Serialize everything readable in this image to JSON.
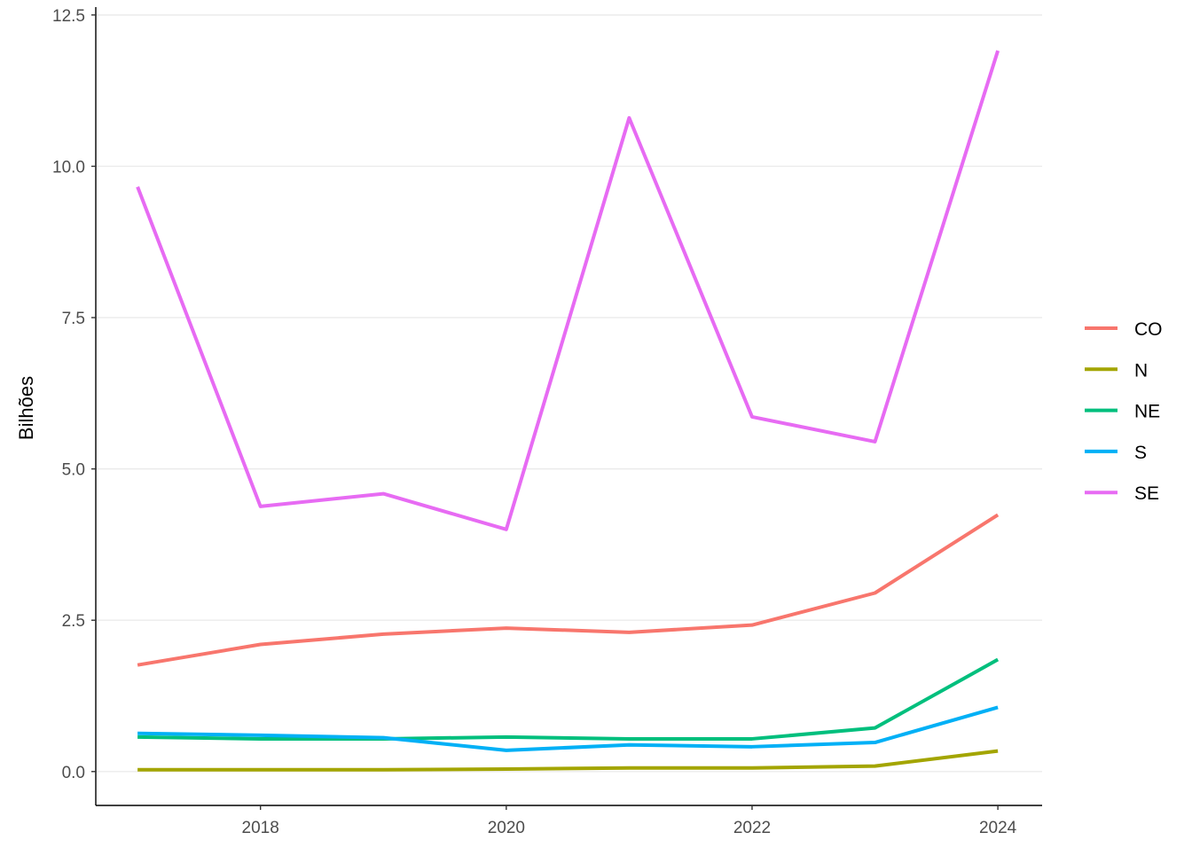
{
  "chart_data": {
    "type": "line",
    "title": "",
    "xlabel": "",
    "ylabel": "Bilhões",
    "x": [
      2017,
      2018,
      2019,
      2020,
      2021,
      2022,
      2023,
      2024
    ],
    "xticks": [
      "2018",
      "2020",
      "2022",
      "2024"
    ],
    "yticks": [
      "0.0",
      "2.5",
      "5.0",
      "7.5",
      "10.0",
      "12.5"
    ],
    "xlim": [
      2016.66,
      2024.36
    ],
    "ylim": [
      -0.56,
      12.63
    ],
    "grid": "horizontal major",
    "legend_position": "right",
    "series": [
      {
        "name": "CO",
        "color": "#F8766D",
        "values": [
          1.76,
          2.1,
          2.27,
          2.37,
          2.3,
          2.42,
          2.95,
          4.24
        ]
      },
      {
        "name": "N",
        "color": "#A3A500",
        "values": [
          0.03,
          0.03,
          0.03,
          0.04,
          0.06,
          0.06,
          0.09,
          0.34
        ]
      },
      {
        "name": "NE",
        "color": "#00BF7D",
        "values": [
          0.57,
          0.54,
          0.54,
          0.57,
          0.54,
          0.54,
          0.72,
          1.85
        ]
      },
      {
        "name": "S",
        "color": "#00B0F6",
        "values": [
          0.63,
          0.6,
          0.56,
          0.35,
          0.44,
          0.41,
          0.48,
          1.06
        ]
      },
      {
        "name": "SE",
        "color": "#E76BF3",
        "values": [
          9.66,
          4.38,
          4.59,
          4.0,
          10.8,
          5.86,
          5.45,
          11.91
        ]
      }
    ]
  }
}
